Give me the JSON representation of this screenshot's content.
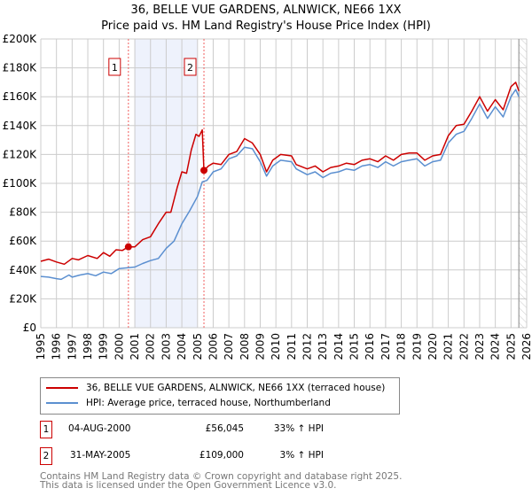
{
  "chart_data": {
    "type": "line",
    "title": "36, BELLE VUE GARDENS, ALNWICK, NE66 1XX",
    "subtitle": "Price paid vs. HM Land Registry's House Price Index (HPI)",
    "xlim": [
      1995,
      2026
    ],
    "ylim": [
      0,
      200000
    ],
    "x_ticks": [
      "1995",
      "1996",
      "1997",
      "1998",
      "1999",
      "2000",
      "2001",
      "2002",
      "2003",
      "2004",
      "2005",
      "2006",
      "2007",
      "2008",
      "2009",
      "2010",
      "2011",
      "2012",
      "2013",
      "2014",
      "2015",
      "2016",
      "2017",
      "2018",
      "2019",
      "2020",
      "2021",
      "2022",
      "2023",
      "2024",
      "2025",
      "2026"
    ],
    "y_ticks": [
      "£0",
      "£20K",
      "£40K",
      "£60K",
      "£80K",
      "£100K",
      "£120K",
      "£140K",
      "£160K",
      "£180K",
      "£200K"
    ],
    "grid": true,
    "shaded_region": [
      2001.0,
      2005.0
    ],
    "forecast_hatch_from": 2025.5,
    "series": [
      {
        "name": "36, BELLE VUE GARDENS, ALNWICK, NE66 1XX (terraced house)",
        "color": "#cc0000",
        "points": [
          [
            1995,
            46000
          ],
          [
            1995.5,
            47500
          ],
          [
            1996,
            45500
          ],
          [
            1996.5,
            44000
          ],
          [
            1997,
            48000
          ],
          [
            1997.4,
            47000
          ],
          [
            1998,
            50000
          ],
          [
            1998.6,
            48000
          ],
          [
            1999,
            52000
          ],
          [
            1999.4,
            49500
          ],
          [
            1999.8,
            54000
          ],
          [
            2000.2,
            53500
          ],
          [
            2000.59,
            56045
          ],
          [
            2001,
            56000
          ],
          [
            2001.5,
            61000
          ],
          [
            2002,
            63000
          ],
          [
            2002.5,
            72000
          ],
          [
            2003,
            80000
          ],
          [
            2003.3,
            80000
          ],
          [
            2003.7,
            97000
          ],
          [
            2004,
            108000
          ],
          [
            2004.3,
            107000
          ],
          [
            2004.6,
            123000
          ],
          [
            2004.9,
            134000
          ],
          [
            2005.1,
            132500
          ],
          [
            2005.3,
            137000
          ],
          [
            2005.41,
            109000
          ],
          [
            2005.7,
            112000
          ],
          [
            2006,
            114000
          ],
          [
            2006.5,
            113000
          ],
          [
            2007,
            120000
          ],
          [
            2007.5,
            122000
          ],
          [
            2008,
            131000
          ],
          [
            2008.5,
            128000
          ],
          [
            2009,
            120000
          ],
          [
            2009.4,
            108000
          ],
          [
            2009.8,
            116000
          ],
          [
            2010.3,
            120000
          ],
          [
            2011,
            119000
          ],
          [
            2011.3,
            113000
          ],
          [
            2012,
            110000
          ],
          [
            2012.5,
            112000
          ],
          [
            2013,
            108000
          ],
          [
            2013.5,
            111000
          ],
          [
            2014,
            112000
          ],
          [
            2014.5,
            114000
          ],
          [
            2015,
            113000
          ],
          [
            2015.5,
            116000
          ],
          [
            2016,
            117000
          ],
          [
            2016.5,
            115000
          ],
          [
            2017,
            119000
          ],
          [
            2017.5,
            116000
          ],
          [
            2018,
            120000
          ],
          [
            2018.5,
            121000
          ],
          [
            2019,
            121000
          ],
          [
            2019.5,
            116000
          ],
          [
            2020,
            119000
          ],
          [
            2020.5,
            120000
          ],
          [
            2021,
            133000
          ],
          [
            2021.5,
            140000
          ],
          [
            2022,
            141000
          ],
          [
            2022.5,
            150000
          ],
          [
            2023,
            160000
          ],
          [
            2023.5,
            150000
          ],
          [
            2024,
            158000
          ],
          [
            2024.5,
            151000
          ],
          [
            2025,
            167000
          ],
          [
            2025.3,
            170000
          ],
          [
            2025.5,
            164000
          ]
        ]
      },
      {
        "name": "HPI: Average price, terraced house, Northumberland",
        "color": "#5b8fd0",
        "points": [
          [
            1995,
            35500
          ],
          [
            1995.5,
            35000
          ],
          [
            1996,
            34000
          ],
          [
            1996.3,
            33500
          ],
          [
            1996.8,
            36500
          ],
          [
            1997,
            35000
          ],
          [
            1997.5,
            36500
          ],
          [
            1998,
            37500
          ],
          [
            1998.5,
            36000
          ],
          [
            1999,
            38500
          ],
          [
            1999.5,
            37500
          ],
          [
            2000,
            41000
          ],
          [
            2000.5,
            41500
          ],
          [
            2001,
            42000
          ],
          [
            2001.5,
            44500
          ],
          [
            2002,
            46500
          ],
          [
            2002.5,
            48000
          ],
          [
            2003,
            55000
          ],
          [
            2003.5,
            60000
          ],
          [
            2004,
            72000
          ],
          [
            2004.5,
            81000
          ],
          [
            2005,
            91000
          ],
          [
            2005.3,
            101000
          ],
          [
            2005.6,
            102000
          ],
          [
            2006,
            108000
          ],
          [
            2006.5,
            110000
          ],
          [
            2007,
            117000
          ],
          [
            2007.5,
            119000
          ],
          [
            2008,
            125000
          ],
          [
            2008.5,
            124000
          ],
          [
            2009,
            115000
          ],
          [
            2009.4,
            105000
          ],
          [
            2009.8,
            112000
          ],
          [
            2010.3,
            116000
          ],
          [
            2011,
            115000
          ],
          [
            2011.3,
            110000
          ],
          [
            2012,
            106000
          ],
          [
            2012.5,
            108000
          ],
          [
            2013,
            104000
          ],
          [
            2013.5,
            107000
          ],
          [
            2014,
            108000
          ],
          [
            2014.5,
            110000
          ],
          [
            2015,
            109000
          ],
          [
            2015.5,
            112000
          ],
          [
            2016,
            113000
          ],
          [
            2016.5,
            111000
          ],
          [
            2017,
            115000
          ],
          [
            2017.5,
            112000
          ],
          [
            2018,
            115000
          ],
          [
            2018.5,
            116000
          ],
          [
            2019,
            117000
          ],
          [
            2019.5,
            112000
          ],
          [
            2020,
            115000
          ],
          [
            2020.5,
            116000
          ],
          [
            2021,
            128000
          ],
          [
            2021.5,
            134000
          ],
          [
            2022,
            136000
          ],
          [
            2022.5,
            145000
          ],
          [
            2023,
            155000
          ],
          [
            2023.5,
            145000
          ],
          [
            2024,
            153000
          ],
          [
            2024.5,
            146000
          ],
          [
            2025,
            160000
          ],
          [
            2025.3,
            165000
          ],
          [
            2025.5,
            160000
          ]
        ]
      }
    ],
    "sales": [
      {
        "id": "1",
        "year": 2000.59,
        "date": "04-AUG-2000",
        "price_value": 56045,
        "price": "£56,045",
        "hpi": "33% ↑ HPI"
      },
      {
        "id": "2",
        "year": 2005.41,
        "date": "31-MAY-2005",
        "price_value": 109000,
        "price": "£109,000",
        "hpi": "3% ↑ HPI"
      }
    ]
  },
  "footer": {
    "line1": "Contains HM Land Registry data © Crown copyright and database right 2025.",
    "line2": "This data is licensed under the Open Government Licence v3.0."
  }
}
